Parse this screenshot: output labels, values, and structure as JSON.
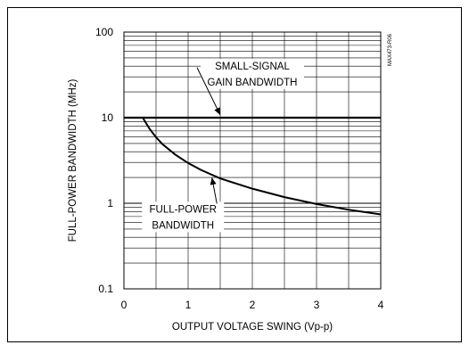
{
  "chart_data": {
    "type": "line",
    "xlabel": "OUTPUT VOLTAGE SWING (Vp-p)",
    "ylabel": "FULL-POWER BANDWIDTH (MHz)",
    "xlim": [
      0,
      4
    ],
    "ylim": [
      0.1,
      100
    ],
    "yscale": "log",
    "grid": true,
    "xticks": [
      "0",
      "1",
      "2",
      "3",
      "4"
    ],
    "yticks": [
      "0.1",
      "1",
      "10",
      "100"
    ],
    "series": [
      {
        "name": "SMALL-SIGNAL GAIN BANDWIDTH",
        "x": [
          0,
          4
        ],
        "y": [
          10,
          10
        ]
      },
      {
        "name": "FULL-POWER BANDWIDTH",
        "x": [
          0.3,
          0.4,
          0.5,
          0.6,
          0.8,
          1.0,
          1.2,
          1.5,
          2.0,
          2.5,
          3.0,
          3.5,
          4.0
        ],
        "y": [
          9.8,
          7.4,
          5.9,
          4.9,
          3.7,
          2.95,
          2.45,
          1.95,
          1.48,
          1.18,
          0.98,
          0.84,
          0.74
        ]
      }
    ],
    "annotations": {
      "small_signal": [
        "SMALL-SIGNAL",
        "GAIN BANDWIDTH"
      ],
      "full_power": [
        "FULL-POWER",
        "BANDWIDTH"
      ]
    },
    "figure_code": "MAX473-R06"
  }
}
